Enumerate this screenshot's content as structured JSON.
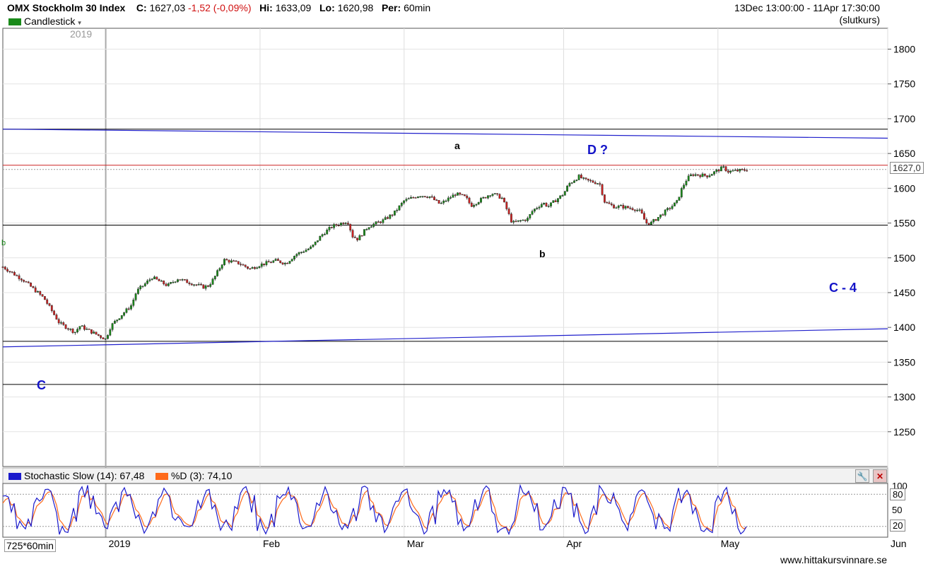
{
  "header": {
    "title": "OMX Stockholm 30 Index",
    "close_label": "C:",
    "close_value": "1627,03",
    "change": "-1,52 (-0,09%)",
    "high_label": "Hi:",
    "high_value": "1633,09",
    "low_label": "Lo:",
    "low_value": "1620,98",
    "period_label": "Per:",
    "period_value": "60min",
    "range": "13Dec 13:00:00 - 11Apr 17:30:00",
    "price_type": "(slutkurs)",
    "chart_type": "Candlestick",
    "year_marker": "2019",
    "bars_label": "725*60min",
    "watermark": "www.hittakursvinnare.se"
  },
  "colors": {
    "up": "#1a8a1a",
    "down": "#cc2222",
    "trend": "#2020cc",
    "level": "#000000",
    "last_price": "#cc2222",
    "stoch_k": "#1a1acc",
    "stoch_d": "#ff6a1a",
    "annot_blue": "#1414c8"
  },
  "annotations": {
    "c_low": "C",
    "a_label": "a",
    "b_label": "b",
    "d_label": "D ?",
    "c4_label": "C - 4",
    "left_marker": "b"
  },
  "stochastic": {
    "k_label": "Stochastic Slow (14): 67,48",
    "d_label": "%D (3): 74,10",
    "ticks": [
      "100",
      "50"
    ],
    "level_high": "80",
    "level_low": "20"
  },
  "chart_data": {
    "type": "candlestick",
    "title": "OMX Stockholm 30 Index",
    "ylim": [
      1200,
      1830
    ],
    "yticks": [
      1250,
      1300,
      1350,
      1400,
      1450,
      1500,
      1550,
      1600,
      1650,
      1700,
      1750,
      1800
    ],
    "ytick_labels": [
      "1250",
      "1300",
      "1350",
      "1400",
      "1450",
      "1500",
      "1550",
      "1600",
      "1650",
      "1700",
      "1750",
      "1800"
    ],
    "last_price": 1627.03,
    "last_price_label": "1627,0",
    "x_range": [
      "2018-12-13",
      "2019-06-03"
    ],
    "x_labels": [
      {
        "label": "2019",
        "date": "2019-01-02"
      },
      {
        "label": "Feb",
        "date": "2019-02-01"
      },
      {
        "label": "Mar",
        "date": "2019-03-01"
      },
      {
        "label": "Apr",
        "date": "2019-04-01"
      },
      {
        "label": "May",
        "date": "2019-05-01"
      },
      {
        "label": "Jun",
        "date": "2019-06-03"
      }
    ],
    "price_path": [
      [
        "2018-12-13",
        1487
      ],
      [
        "2018-12-17",
        1468
      ],
      [
        "2018-12-19",
        1455
      ],
      [
        "2018-12-21",
        1442
      ],
      [
        "2018-12-24",
        1406
      ],
      [
        "2018-12-27",
        1393
      ],
      [
        "2018-12-28",
        1402
      ],
      [
        "2019-01-02",
        1383
      ],
      [
        "2019-01-03",
        1402
      ],
      [
        "2019-01-04",
        1410
      ],
      [
        "2019-01-07",
        1432
      ],
      [
        "2019-01-08",
        1452
      ],
      [
        "2019-01-10",
        1465
      ],
      [
        "2019-01-11",
        1472
      ],
      [
        "2019-01-14",
        1460
      ],
      [
        "2019-01-16",
        1470
      ],
      [
        "2019-01-18",
        1465
      ],
      [
        "2019-01-21",
        1458
      ],
      [
        "2019-01-22",
        1460
      ],
      [
        "2019-01-23",
        1470
      ],
      [
        "2019-01-25",
        1497
      ],
      [
        "2019-01-28",
        1492
      ],
      [
        "2019-01-30",
        1484
      ],
      [
        "2019-02-01",
        1490
      ],
      [
        "2019-02-04",
        1496
      ],
      [
        "2019-02-06",
        1492
      ],
      [
        "2019-02-08",
        1505
      ],
      [
        "2019-02-11",
        1515
      ],
      [
        "2019-02-13",
        1533
      ],
      [
        "2019-02-15",
        1545
      ],
      [
        "2019-02-18",
        1553
      ],
      [
        "2019-02-19",
        1531
      ],
      [
        "2019-02-20",
        1527
      ],
      [
        "2019-02-22",
        1545
      ],
      [
        "2019-02-25",
        1554
      ],
      [
        "2019-02-27",
        1564
      ],
      [
        "2019-03-01",
        1582
      ],
      [
        "2019-03-04",
        1590
      ],
      [
        "2019-03-06",
        1588
      ],
      [
        "2019-03-08",
        1577
      ],
      [
        "2019-03-11",
        1592
      ],
      [
        "2019-03-13",
        1587
      ],
      [
        "2019-03-14",
        1575
      ],
      [
        "2019-03-18",
        1593
      ],
      [
        "2019-03-20",
        1586
      ],
      [
        "2019-03-21",
        1569
      ],
      [
        "2019-03-22",
        1550
      ],
      [
        "2019-03-25",
        1556
      ],
      [
        "2019-03-26",
        1568
      ],
      [
        "2019-03-28",
        1579
      ],
      [
        "2019-03-29",
        1574
      ],
      [
        "2019-04-01",
        1592
      ],
      [
        "2019-04-02",
        1606
      ],
      [
        "2019-04-04",
        1617
      ],
      [
        "2019-04-05",
        1612
      ],
      [
        "2019-04-08",
        1607
      ],
      [
        "2019-04-09",
        1580
      ],
      [
        "2019-04-11",
        1573
      ],
      [
        "2019-04-12",
        1574
      ],
      [
        "2019-04-15",
        1570
      ],
      [
        "2019-04-16",
        1566
      ],
      [
        "2019-04-17",
        1550
      ],
      [
        "2019-04-18",
        1550
      ],
      [
        "2019-04-23",
        1580
      ],
      [
        "2019-04-24",
        1600
      ],
      [
        "2019-04-25",
        1614
      ],
      [
        "2019-04-26",
        1620
      ],
      [
        "2019-04-29",
        1618
      ],
      [
        "2019-04-30",
        1622
      ],
      [
        "2019-05-02",
        1630
      ],
      [
        "2019-05-03",
        1624
      ],
      [
        "2019-05-06",
        1626
      ],
      [
        "2019-05-07",
        1627
      ]
    ],
    "horizontal_levels": [
      1685,
      1547,
      1380,
      1318
    ],
    "trendlines": [
      {
        "from": [
          "2018-12-13",
          1685
        ],
        "to": [
          "2019-06-03",
          1672
        ]
      },
      {
        "from": [
          "2018-12-13",
          1372
        ],
        "to": [
          "2019-06-03",
          1398
        ]
      }
    ],
    "stochastic_levels": [
      80,
      20
    ],
    "stochastic_ylim": [
      0,
      100
    ]
  }
}
